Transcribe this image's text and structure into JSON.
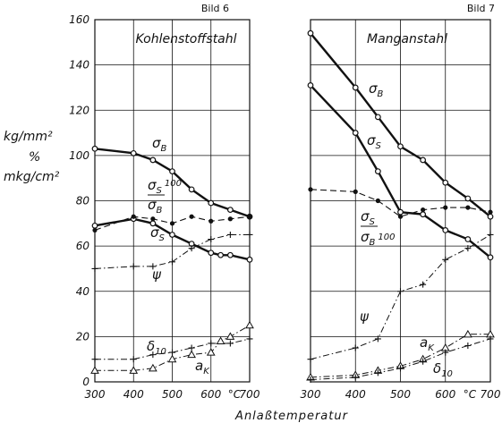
{
  "ylabel_lines": [
    "kg/mm²",
    "%",
    "mkg/cm²"
  ],
  "xlabel": "Anlaßtemperatur",
  "x_unit": "°C",
  "chart_data": [
    {
      "type": "line",
      "figure_label": "Bild 6",
      "panel_title": "Kohlenstoffstahl",
      "xlim": [
        300,
        700
      ],
      "ylim": [
        0,
        160
      ],
      "xticks": [
        300,
        400,
        500,
        600,
        700
      ],
      "yticks": [
        0,
        20,
        40,
        60,
        80,
        100,
        120,
        140,
        160
      ],
      "grid": true,
      "series": [
        {
          "name": "σB",
          "style": "thick-solid",
          "marker": "circle",
          "x": [
            300,
            400,
            450,
            500,
            550,
            600,
            650,
            700
          ],
          "y": [
            103,
            101,
            98,
            93,
            85,
            79,
            76,
            73
          ]
        },
        {
          "name": "σS",
          "style": "thick-solid",
          "marker": "circle",
          "x": [
            300,
            400,
            450,
            500,
            550,
            600,
            625,
            650,
            700
          ],
          "y": [
            69,
            72,
            70,
            65,
            61,
            57,
            56,
            56,
            54
          ]
        },
        {
          "name": "σS/σB · 100",
          "style": "dashed",
          "marker": "dot",
          "x": [
            300,
            400,
            450,
            500,
            550,
            600,
            650,
            700
          ],
          "y": [
            67,
            73,
            72,
            70,
            73,
            71,
            72,
            73
          ]
        },
        {
          "name": "ψ",
          "style": "dash-dot",
          "marker": "plus",
          "x": [
            300,
            400,
            450,
            500,
            550,
            600,
            650,
            700
          ],
          "y": [
            50,
            51,
            51,
            53,
            59,
            63,
            65,
            65
          ]
        },
        {
          "name": "δ10",
          "style": "dash-dot",
          "marker": "plus",
          "x": [
            300,
            400,
            450,
            500,
            550,
            600,
            650,
            700
          ],
          "y": [
            10,
            10,
            12,
            13,
            15,
            17,
            17,
            19
          ]
        },
        {
          "name": "aK",
          "style": "dash-dot",
          "marker": "triangle",
          "x": [
            300,
            400,
            450,
            500,
            550,
            600,
            625,
            650,
            700
          ],
          "y": [
            5,
            5,
            6,
            10,
            12,
            13,
            18,
            20,
            25
          ]
        }
      ]
    },
    {
      "type": "line",
      "figure_label": "Bild 7",
      "panel_title": "Manganstahl",
      "xlim": [
        300,
        700
      ],
      "ylim": [
        0,
        160
      ],
      "xticks": [
        300,
        400,
        500,
        600,
        700
      ],
      "yticks": [
        0,
        20,
        40,
        60,
        80,
        100,
        120,
        140,
        160
      ],
      "grid": true,
      "series": [
        {
          "name": "σB",
          "style": "thick-solid",
          "marker": "circle",
          "x": [
            300,
            400,
            450,
            500,
            550,
            600,
            650,
            700
          ],
          "y": [
            154,
            130,
            117,
            104,
            98,
            88,
            81,
            73
          ]
        },
        {
          "name": "σS",
          "style": "thick-solid",
          "marker": "circle",
          "x": [
            300,
            400,
            450,
            500,
            550,
            600,
            650,
            700
          ],
          "y": [
            131,
            110,
            93,
            75,
            74,
            67,
            63,
            55
          ]
        },
        {
          "name": "σS/σB · 100",
          "style": "dashed",
          "marker": "dot",
          "x": [
            300,
            400,
            450,
            500,
            550,
            600,
            650,
            700
          ],
          "y": [
            85,
            84,
            80,
            73,
            76,
            77,
            77,
            75
          ]
        },
        {
          "name": "ψ",
          "style": "dash-dot",
          "marker": "plus",
          "x": [
            300,
            400,
            450,
            500,
            550,
            600,
            650,
            700
          ],
          "y": [
            10,
            15,
            19,
            40,
            43,
            54,
            59,
            65
          ]
        },
        {
          "name": "aK",
          "style": "dash-dot",
          "marker": "triangle",
          "x": [
            300,
            400,
            450,
            500,
            550,
            600,
            650,
            700
          ],
          "y": [
            2,
            3,
            5,
            7,
            10,
            15,
            21,
            21
          ]
        },
        {
          "name": "δ10",
          "style": "dash-dot",
          "marker": "plus",
          "x": [
            300,
            400,
            450,
            500,
            550,
            600,
            650,
            700
          ],
          "y": [
            1,
            2,
            4,
            6,
            9,
            13,
            16,
            19
          ]
        }
      ]
    }
  ]
}
